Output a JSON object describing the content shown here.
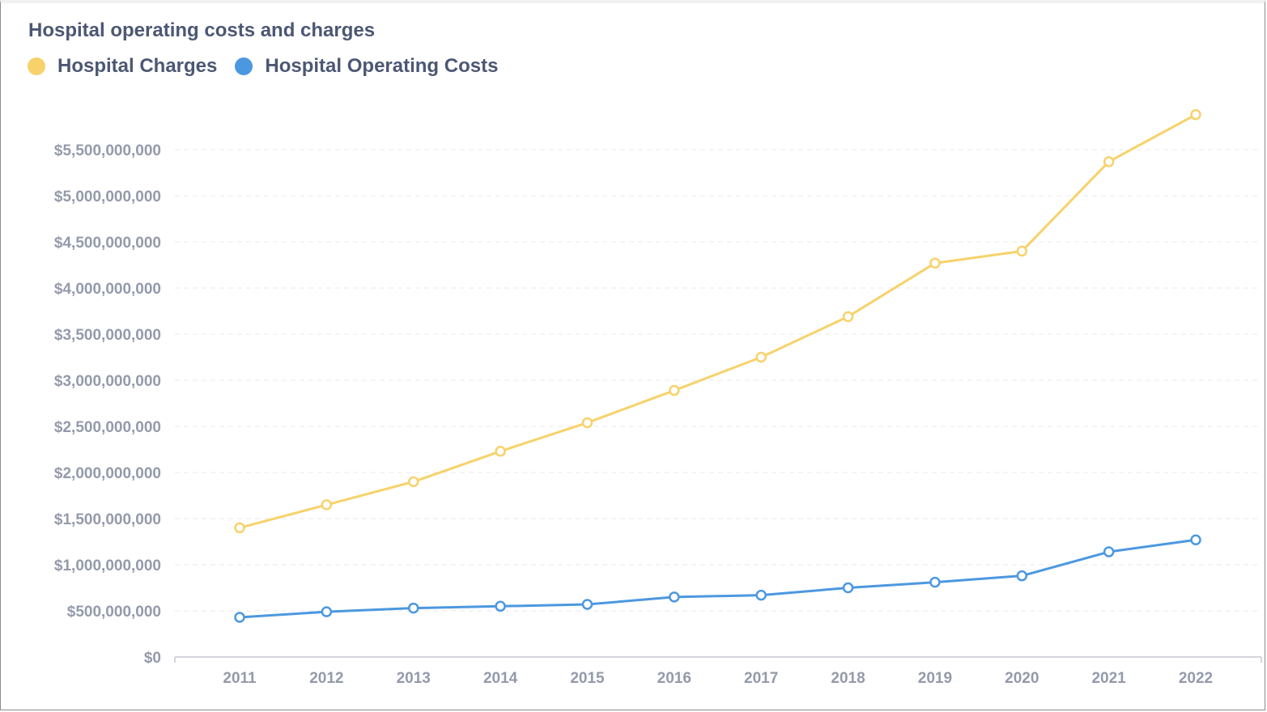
{
  "chart_data": {
    "type": "line",
    "title": "Hospital operating costs and charges",
    "xlabel": "",
    "ylabel": "",
    "categories": [
      "2011",
      "2012",
      "2013",
      "2014",
      "2015",
      "2016",
      "2017",
      "2018",
      "2019",
      "2020",
      "2021",
      "2022"
    ],
    "series": [
      {
        "name": "Hospital Charges",
        "color": "#f7d26b",
        "values": [
          1400000000,
          1650000000,
          1900000000,
          2230000000,
          2540000000,
          2890000000,
          3250000000,
          3690000000,
          4270000000,
          4400000000,
          5370000000,
          5880000000
        ]
      },
      {
        "name": "Hospital Operating Costs",
        "color": "#4c98e0",
        "values": [
          430000000,
          490000000,
          530000000,
          550000000,
          570000000,
          650000000,
          670000000,
          750000000,
          810000000,
          880000000,
          1140000000,
          1270000000
        ]
      }
    ],
    "ylim": [
      0,
      6000000000
    ],
    "yticks": [
      {
        "value": 0,
        "label": "$0"
      },
      {
        "value": 500000000,
        "label": "$500,000,000"
      },
      {
        "value": 1000000000,
        "label": "$1,000,000,000"
      },
      {
        "value": 1500000000,
        "label": "$1,500,000,000"
      },
      {
        "value": 2000000000,
        "label": "$2,000,000,000"
      },
      {
        "value": 2500000000,
        "label": "$2,500,000,000"
      },
      {
        "value": 3000000000,
        "label": "$3,000,000,000"
      },
      {
        "value": 3500000000,
        "label": "$3,500,000,000"
      },
      {
        "value": 4000000000,
        "label": "$4,000,000,000"
      },
      {
        "value": 4500000000,
        "label": "$4,500,000,000"
      },
      {
        "value": 5000000000,
        "label": "$5,000,000,000"
      },
      {
        "value": 5500000000,
        "label": "$5,500,000,000"
      }
    ],
    "grid": true,
    "legend_position": "top-left"
  },
  "colors": {
    "text": "#4c5773",
    "tick_text": "#949aab",
    "grid": "#e8eaee",
    "axis": "#c5c9d2"
  }
}
